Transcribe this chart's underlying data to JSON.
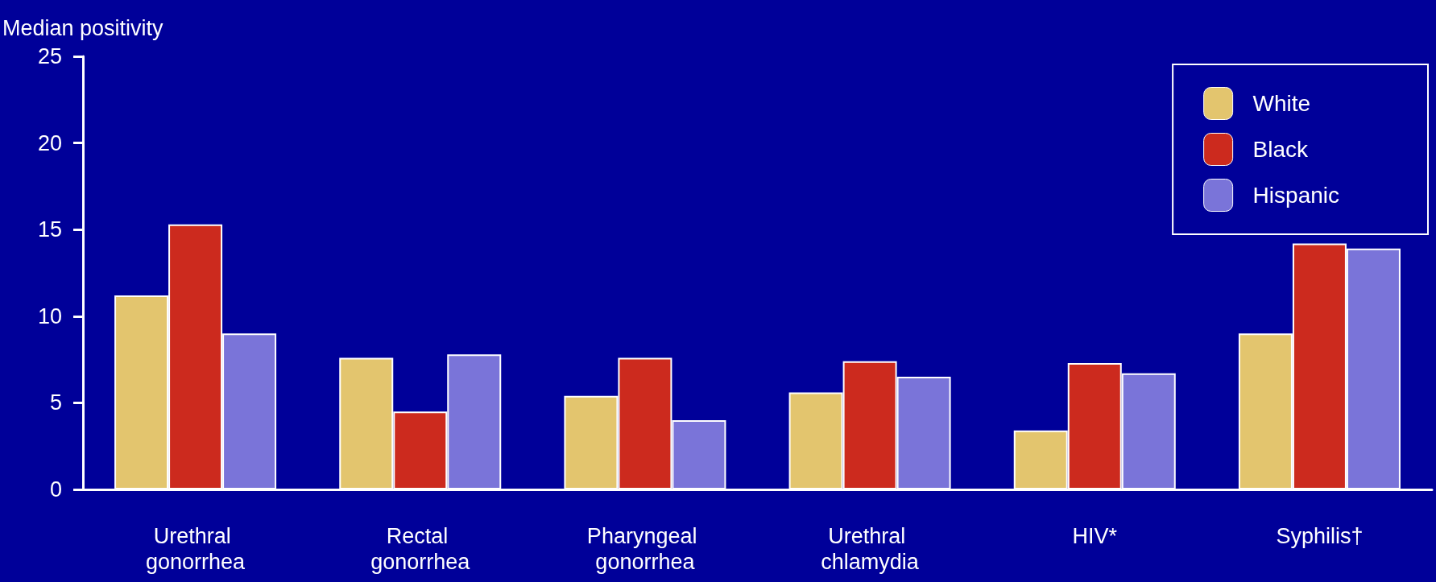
{
  "chart_data": {
    "type": "bar",
    "ylabel": "Median positivity",
    "categories": [
      "Urethral gonorrhea",
      "Rectal gonorrhea",
      "Pharyngeal gonorrhea",
      "Urethral chlamydia",
      "HIV*",
      "Syphilis†"
    ],
    "series": [
      {
        "name": "White",
        "color": "#e3c56e",
        "values": [
          11.2,
          7.6,
          5.4,
          5.6,
          3.4,
          9.0
        ]
      },
      {
        "name": "Black",
        "color": "#cc2a1e",
        "values": [
          15.3,
          4.5,
          7.6,
          7.4,
          7.3,
          14.2
        ]
      },
      {
        "name": "Hispanic",
        "color": "#7a74d9",
        "values": [
          9.0,
          7.8,
          4.0,
          6.5,
          6.7,
          13.9
        ]
      }
    ],
    "ylim": [
      0,
      25
    ],
    "yticks": [
      0,
      5,
      10,
      15,
      20,
      25
    ],
    "grid": false,
    "legend": "top right"
  }
}
